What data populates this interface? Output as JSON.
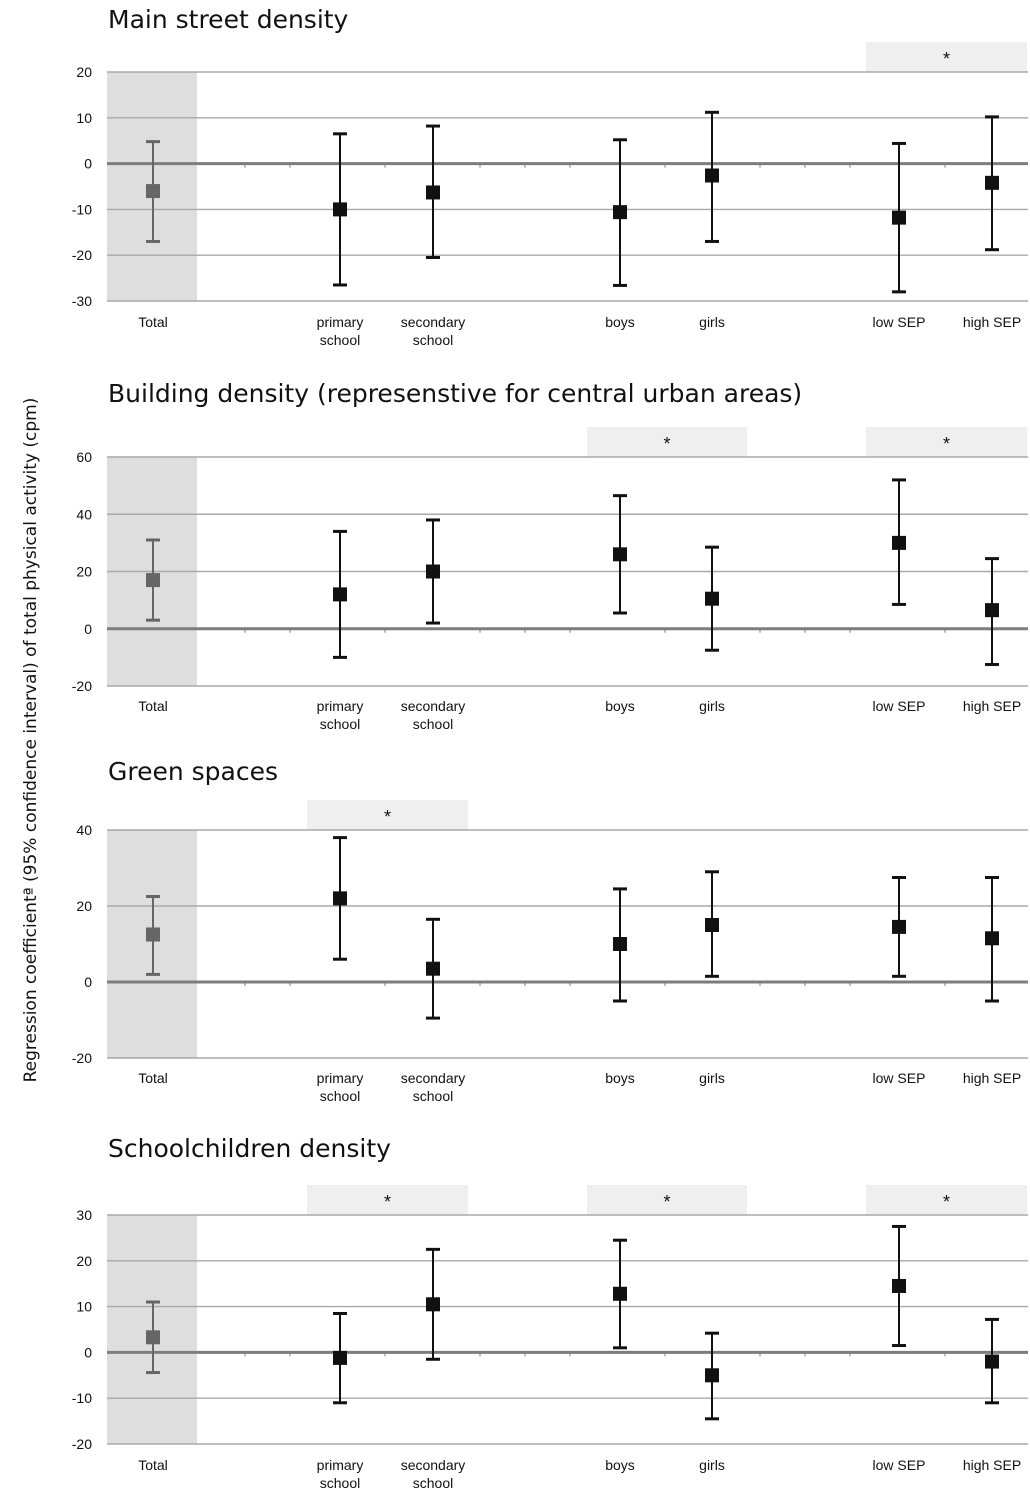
{
  "figure": {
    "ylabel": "Regression coefficientª (95% confidence interval) of total physical activity (cpm)"
  },
  "chart_data": [
    {
      "type": "scatter",
      "title": "Main street density",
      "ylim": [
        -30,
        20
      ],
      "yticks": [
        20,
        10,
        0,
        -10,
        -20,
        -30
      ],
      "categories": [
        "Total",
        "primary school",
        "secondary school",
        "boys",
        "girls",
        "low SEP",
        "high SEP"
      ],
      "category_labels": [
        [
          "Total"
        ],
        [
          "primary",
          "school"
        ],
        [
          "secondary",
          "school"
        ],
        [
          "boys"
        ],
        [
          "girls"
        ],
        [
          "low SEP"
        ],
        [
          "high SEP"
        ]
      ],
      "estimates": [
        -6,
        -10,
        -6.3,
        -10.6,
        -2.6,
        -11.8,
        -4.2
      ],
      "ci_lower": [
        -17,
        -26.5,
        -20.5,
        -26.6,
        -17,
        -28,
        -18.8
      ],
      "ci_upper": [
        4.8,
        6.5,
        8.2,
        5.2,
        11.2,
        4.4,
        10.2
      ],
      "significant_groups": [
        "SEP"
      ],
      "significance_marker": "*",
      "grid": true
    },
    {
      "type": "scatter",
      "title": "Building density (represenstive for central urban areas)",
      "ylim": [
        -20,
        60
      ],
      "yticks": [
        60,
        40,
        20,
        0,
        -20
      ],
      "categories": [
        "Total",
        "primary school",
        "secondary school",
        "boys",
        "girls",
        "low SEP",
        "high SEP"
      ],
      "category_labels": [
        [
          "Total"
        ],
        [
          "primary",
          "school"
        ],
        [
          "secondary",
          "school"
        ],
        [
          "boys"
        ],
        [
          "girls"
        ],
        [
          "low SEP"
        ],
        [
          "high SEP"
        ]
      ],
      "estimates": [
        17,
        12,
        20,
        26,
        10.5,
        30,
        6.5
      ],
      "ci_lower": [
        3,
        -10,
        2,
        5.5,
        -7.5,
        8.5,
        -12.5
      ],
      "ci_upper": [
        31,
        34,
        38,
        46.5,
        28.5,
        52,
        24.5
      ],
      "significant_groups": [
        "sex",
        "SEP"
      ],
      "significance_marker": "*",
      "grid": true
    },
    {
      "type": "scatter",
      "title": "Green spaces",
      "ylim": [
        -20,
        40
      ],
      "yticks": [
        40,
        20,
        0,
        -20
      ],
      "categories": [
        "Total",
        "primary school",
        "secondary school",
        "boys",
        "girls",
        "low SEP",
        "high SEP"
      ],
      "category_labels": [
        [
          "Total"
        ],
        [
          "primary",
          "school"
        ],
        [
          "secondary",
          "school"
        ],
        [
          "boys"
        ],
        [
          "girls"
        ],
        [
          "low SEP"
        ],
        [
          "high SEP"
        ]
      ],
      "estimates": [
        12.5,
        22,
        3.5,
        10,
        15,
        14.5,
        11.5
      ],
      "ci_lower": [
        2,
        6,
        -9.5,
        -5,
        1.5,
        1.5,
        -5
      ],
      "ci_upper": [
        22.5,
        38,
        16.5,
        24.5,
        29,
        27.5,
        27.5
      ],
      "significant_groups": [
        "school"
      ],
      "significance_marker": "*",
      "grid": true
    },
    {
      "type": "scatter",
      "title": "Schoolchildren density",
      "ylim": [
        -20,
        30
      ],
      "yticks": [
        30,
        20,
        10,
        0,
        -10,
        -20
      ],
      "categories": [
        "Total",
        "primary school",
        "secondary school",
        "boys",
        "girls",
        "low SEP",
        "high SEP"
      ],
      "category_labels": [
        [
          "Total"
        ],
        [
          "primary",
          "school"
        ],
        [
          "secondary",
          "school"
        ],
        [
          "boys"
        ],
        [
          "girls"
        ],
        [
          "low SEP"
        ],
        [
          "high SEP"
        ]
      ],
      "estimates": [
        3.3,
        -1.2,
        10.5,
        12.8,
        -5,
        14.5,
        -2
      ],
      "ci_lower": [
        -4.4,
        -11,
        -1.5,
        1,
        -14.5,
        1.5,
        -11
      ],
      "ci_upper": [
        11,
        8.5,
        22.5,
        24.5,
        4.2,
        27.5,
        7.2
      ],
      "significant_groups": [
        "school",
        "sex",
        "SEP"
      ],
      "significance_marker": "*",
      "grid": true
    }
  ]
}
